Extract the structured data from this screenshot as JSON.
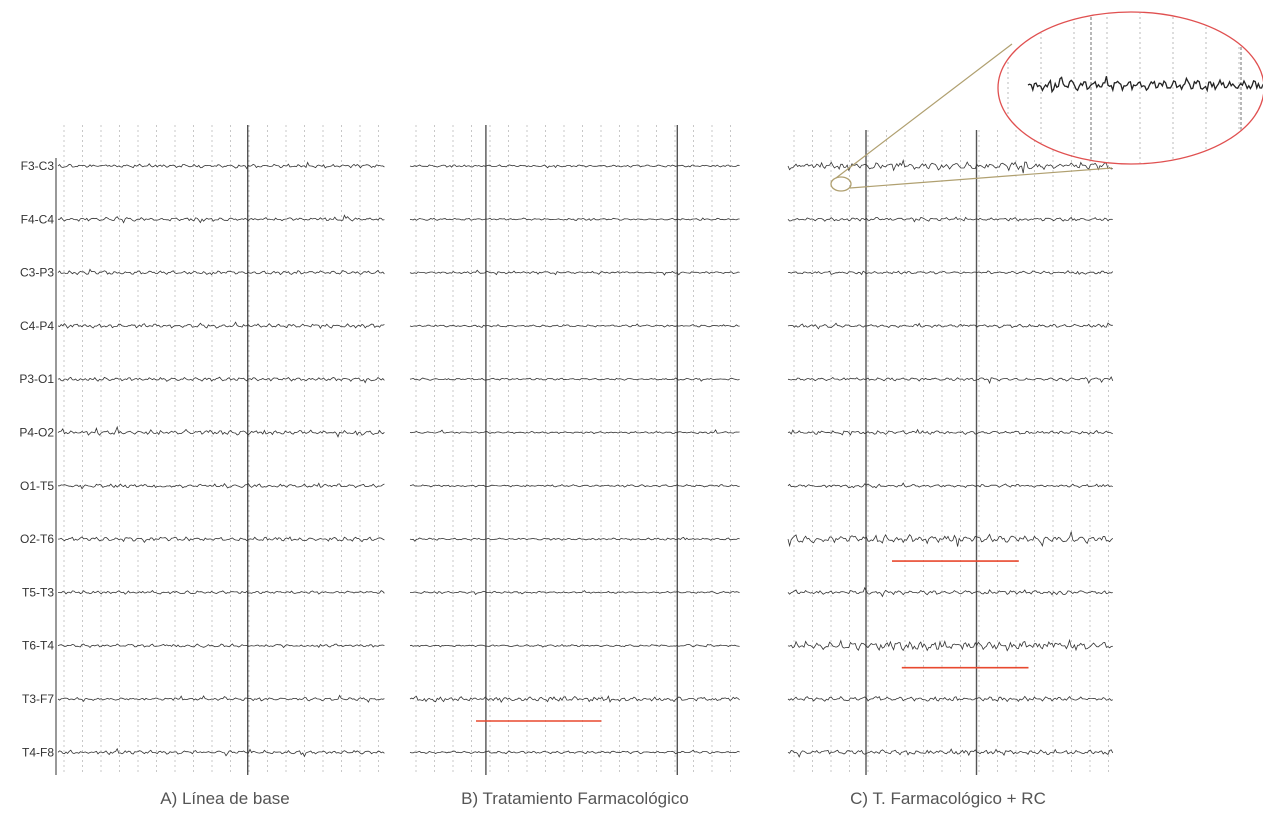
{
  "chart_data": {
    "type": "line",
    "channels": [
      "F3-C3",
      "F4-C4",
      "C3-P3",
      "C4-P4",
      "P3-O1",
      "P4-O2",
      "O1-T5",
      "O2-T6",
      "T5-T3",
      "T6-T4",
      "T3-F7",
      "T4-F8"
    ],
    "panels": [
      {
        "caption": "A) Línea de base",
        "traces": [
          {
            "channel": "F3-C3",
            "activity": 0.7
          },
          {
            "channel": "F4-C4",
            "activity": 0.7
          },
          {
            "channel": "C3-P3",
            "activity": 0.7
          },
          {
            "channel": "C4-P4",
            "activity": 0.8
          },
          {
            "channel": "P3-O1",
            "activity": 0.7
          },
          {
            "channel": "P4-O2",
            "activity": 0.9
          },
          {
            "channel": "O1-T5",
            "activity": 0.7
          },
          {
            "channel": "O2-T6",
            "activity": 0.8
          },
          {
            "channel": "T5-T3",
            "activity": 0.6
          },
          {
            "channel": "T6-T4",
            "activity": 0.6
          },
          {
            "channel": "T3-F7",
            "activity": 0.6
          },
          {
            "channel": "T4-F8",
            "activity": 0.7
          }
        ],
        "highlights": []
      },
      {
        "caption": "B) Tratamiento Farmacológico",
        "traces": [
          {
            "channel": "F3-C3",
            "activity": 0.4
          },
          {
            "channel": "F4-C4",
            "activity": 0.4
          },
          {
            "channel": "C3-P3",
            "activity": 0.4
          },
          {
            "channel": "C4-P4",
            "activity": 0.4
          },
          {
            "channel": "P3-O1",
            "activity": 0.4
          },
          {
            "channel": "P4-O2",
            "activity": 0.4
          },
          {
            "channel": "O1-T5",
            "activity": 0.4
          },
          {
            "channel": "O2-T6",
            "activity": 0.4
          },
          {
            "channel": "T5-T3",
            "activity": 0.4
          },
          {
            "channel": "T6-T4",
            "activity": 0.4
          },
          {
            "channel": "T3-F7",
            "activity": 0.9
          },
          {
            "channel": "T4-F8",
            "activity": 0.5
          }
        ],
        "highlights": [
          {
            "channel": "T3-F7",
            "from": 0.2,
            "to": 0.58
          }
        ]
      },
      {
        "caption": "C) T. Farmacológico + RC",
        "traces": [
          {
            "channel": "F3-C3",
            "activity": 1.5
          },
          {
            "channel": "F4-C4",
            "activity": 0.7
          },
          {
            "channel": "C3-P3",
            "activity": 0.6
          },
          {
            "channel": "C4-P4",
            "activity": 0.6
          },
          {
            "channel": "P3-O1",
            "activity": 0.6
          },
          {
            "channel": "P4-O2",
            "activity": 0.7
          },
          {
            "channel": "O1-T5",
            "activity": 0.6
          },
          {
            "channel": "O2-T6",
            "activity": 1.5
          },
          {
            "channel": "T5-T3",
            "activity": 0.8
          },
          {
            "channel": "T6-T4",
            "activity": 1.7
          },
          {
            "channel": "T3-F7",
            "activity": 0.9
          },
          {
            "channel": "T4-F8",
            "activity": 1.0
          }
        ],
        "highlights": [
          {
            "channel": "O2-T6",
            "from": 0.32,
            "to": 0.71
          },
          {
            "channel": "T6-T4",
            "from": 0.35,
            "to": 0.74
          }
        ],
        "magnified_channel": "F3-C3"
      }
    ],
    "colors": {
      "trace": "#333333",
      "grid_major": "#555555",
      "grid_minor": "#bbbbbb",
      "highlight": "#e8492f",
      "magnifier": "#e05050",
      "magnifier_link": "#b0a070"
    }
  }
}
